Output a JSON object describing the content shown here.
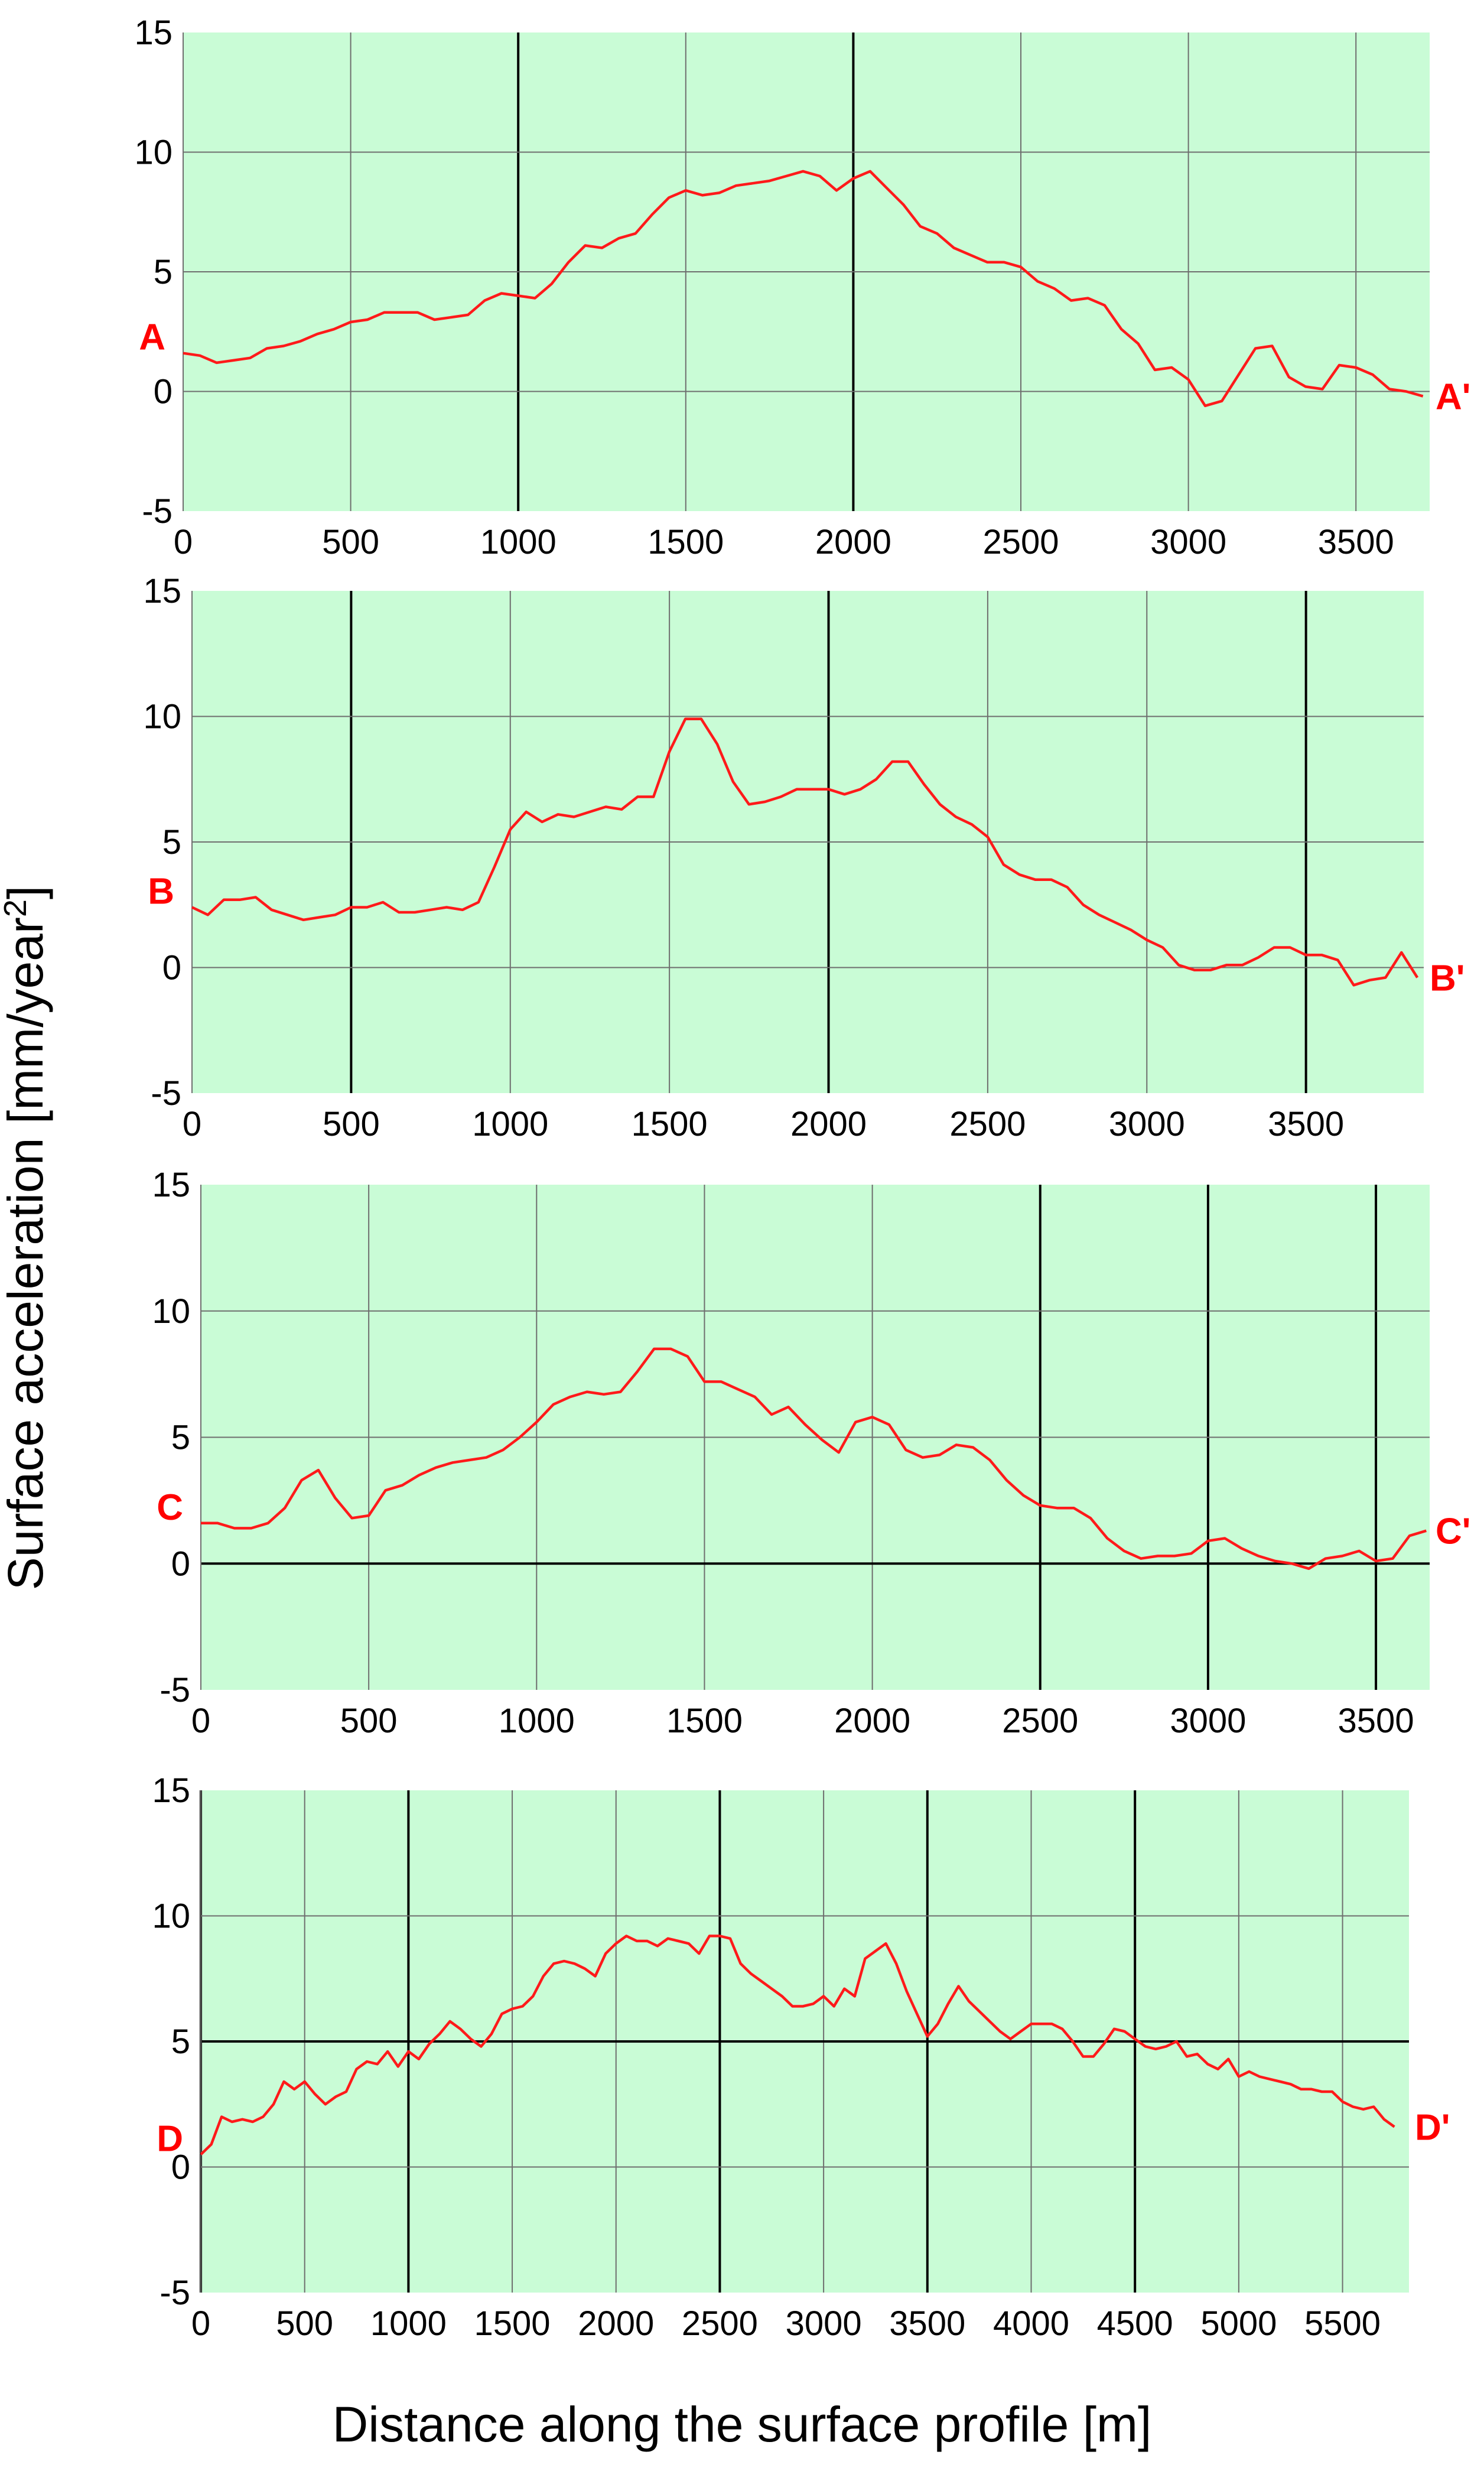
{
  "figure": {
    "ylabel_main": "Surface acceleration [mm/year",
    "ylabel_sup": "2",
    "ylabel_end": "]",
    "xlabel": "Distance along the surface profile [m]"
  },
  "colors": {
    "plot_background": "#c9fcd6",
    "line": "#ff1a1a",
    "label": "#ff0000",
    "grid_minor": "#6e6e6e",
    "grid_major": "#000000"
  },
  "chart_data": [
    {
      "type": "line",
      "profile": "A–A'",
      "start_label": "A",
      "end_label": "A'",
      "xlim": [
        0,
        3720
      ],
      "ylim": [
        -5,
        15
      ],
      "x_ticks": [
        0,
        500,
        1000,
        1500,
        2000,
        2500,
        3000,
        3500
      ],
      "y_ticks": [
        -5,
        0,
        5,
        10,
        15
      ],
      "dark_vlines": [
        1000,
        2000
      ],
      "dark_hlines": [],
      "series": [
        {
          "name": "A-A' surface acceleration",
          "x": [
            0,
            50,
            100,
            150,
            200,
            250,
            300,
            350,
            400,
            450,
            500,
            550,
            600,
            650,
            700,
            750,
            800,
            850,
            900,
            950,
            1000,
            1050,
            1100,
            1150,
            1200,
            1250,
            1300,
            1350,
            1400,
            1450,
            1500,
            1550,
            1600,
            1650,
            1700,
            1750,
            1800,
            1850,
            1900,
            1950,
            2000,
            2050,
            2100,
            2150,
            2200,
            2250,
            2300,
            2350,
            2400,
            2450,
            2500,
            2550,
            2600,
            2650,
            2700,
            2750,
            2800,
            2850,
            2900,
            2950,
            3000,
            3050,
            3100,
            3150,
            3200,
            3250,
            3300,
            3350,
            3400,
            3450,
            3500,
            3550,
            3600,
            3650,
            3700
          ],
          "y": [
            1.6,
            1.5,
            1.2,
            1.3,
            1.4,
            1.8,
            1.9,
            2.1,
            2.4,
            2.6,
            2.9,
            3.0,
            3.3,
            3.3,
            3.3,
            3.0,
            3.1,
            3.2,
            3.8,
            4.1,
            4.0,
            3.9,
            4.5,
            5.4,
            6.1,
            6.0,
            6.4,
            6.6,
            7.4,
            8.1,
            8.4,
            8.2,
            8.3,
            8.6,
            8.7,
            8.8,
            9.0,
            9.2,
            9.0,
            8.4,
            8.9,
            9.2,
            8.5,
            7.8,
            6.9,
            6.6,
            6.0,
            5.7,
            5.4,
            5.4,
            5.2,
            4.6,
            4.3,
            3.8,
            3.9,
            3.6,
            2.6,
            2.0,
            0.9,
            1.0,
            0.5,
            -0.6,
            -0.4,
            0.7,
            1.8,
            1.9,
            0.6,
            0.2,
            0.1,
            1.1,
            1.0,
            0.7,
            0.1,
            0.0,
            -0.2
          ]
        }
      ]
    },
    {
      "type": "line",
      "profile": "B–B'",
      "start_label": "B",
      "end_label": "B'",
      "xlim": [
        0,
        3870
      ],
      "ylim": [
        -5,
        15
      ],
      "x_ticks": [
        0,
        500,
        1000,
        1500,
        2000,
        2500,
        3000,
        3500
      ],
      "y_ticks": [
        -5,
        0,
        5,
        10,
        15
      ],
      "dark_vlines": [
        500,
        2000,
        3500
      ],
      "dark_hlines": [],
      "series": [
        {
          "name": "B-B' surface acceleration",
          "x": [
            0,
            50,
            100,
            150,
            200,
            250,
            300,
            350,
            400,
            450,
            500,
            550,
            600,
            650,
            700,
            750,
            800,
            850,
            900,
            950,
            1000,
            1050,
            1100,
            1150,
            1200,
            1250,
            1300,
            1350,
            1400,
            1450,
            1500,
            1550,
            1600,
            1650,
            1700,
            1750,
            1800,
            1850,
            1900,
            1950,
            2000,
            2050,
            2100,
            2150,
            2200,
            2250,
            2300,
            2350,
            2400,
            2450,
            2500,
            2550,
            2600,
            2650,
            2700,
            2750,
            2800,
            2850,
            2900,
            2950,
            3000,
            3050,
            3100,
            3150,
            3200,
            3250,
            3300,
            3350,
            3400,
            3450,
            3500,
            3550,
            3600,
            3650,
            3700,
            3750,
            3800,
            3850
          ],
          "y": [
            2.4,
            2.1,
            2.7,
            2.7,
            2.8,
            2.3,
            2.1,
            1.9,
            2.0,
            2.1,
            2.4,
            2.4,
            2.6,
            2.2,
            2.2,
            2.3,
            2.4,
            2.3,
            2.6,
            4.0,
            5.5,
            6.2,
            5.8,
            6.1,
            6.0,
            6.2,
            6.4,
            6.3,
            6.8,
            6.8,
            8.6,
            9.9,
            9.9,
            8.9,
            7.4,
            6.5,
            6.6,
            6.8,
            7.1,
            7.1,
            7.1,
            6.9,
            7.1,
            7.5,
            8.2,
            8.2,
            7.3,
            6.5,
            6.0,
            5.7,
            5.2,
            4.1,
            3.7,
            3.5,
            3.5,
            3.2,
            2.5,
            2.1,
            1.8,
            1.5,
            1.1,
            0.8,
            0.1,
            -0.1,
            -0.1,
            0.1,
            0.1,
            0.4,
            0.8,
            0.8,
            0.5,
            0.5,
            0.3,
            -0.7,
            -0.5,
            -0.4,
            0.6,
            -0.4
          ]
        }
      ]
    },
    {
      "type": "line",
      "profile": "C–C'",
      "start_label": "C",
      "end_label": "C'",
      "xlim": [
        0,
        3660
      ],
      "ylim": [
        -5,
        15
      ],
      "x_ticks": [
        0,
        500,
        1000,
        1500,
        2000,
        2500,
        3000,
        3500
      ],
      "y_ticks": [
        -5,
        0,
        5,
        10,
        15
      ],
      "dark_vlines": [
        2500,
        3000,
        3500
      ],
      "dark_hlines": [
        0
      ],
      "series": [
        {
          "name": "C-C' surface acceleration",
          "x": [
            0,
            50,
            100,
            150,
            200,
            250,
            300,
            350,
            400,
            450,
            500,
            550,
            600,
            650,
            700,
            750,
            800,
            850,
            900,
            950,
            1000,
            1050,
            1100,
            1150,
            1200,
            1250,
            1300,
            1350,
            1400,
            1450,
            1500,
            1550,
            1600,
            1650,
            1700,
            1750,
            1800,
            1850,
            1900,
            1950,
            2000,
            2050,
            2100,
            2150,
            2200,
            2250,
            2300,
            2350,
            2400,
            2450,
            2500,
            2550,
            2600,
            2650,
            2700,
            2750,
            2800,
            2850,
            2900,
            2950,
            3000,
            3050,
            3100,
            3150,
            3200,
            3250,
            3300,
            3350,
            3400,
            3450,
            3500,
            3550,
            3600,
            3650
          ],
          "y": [
            1.6,
            1.6,
            1.4,
            1.4,
            1.6,
            2.2,
            3.3,
            3.7,
            2.6,
            1.8,
            1.9,
            2.9,
            3.1,
            3.5,
            3.8,
            4.0,
            4.1,
            4.2,
            4.5,
            5.0,
            5.6,
            6.3,
            6.6,
            6.8,
            6.7,
            6.8,
            7.6,
            8.5,
            8.5,
            8.2,
            7.2,
            7.2,
            6.9,
            6.6,
            5.9,
            6.2,
            5.5,
            4.9,
            4.4,
            5.6,
            5.8,
            5.5,
            4.5,
            4.2,
            4.3,
            4.7,
            4.6,
            4.1,
            3.3,
            2.7,
            2.3,
            2.2,
            2.2,
            1.8,
            1.0,
            0.5,
            0.2,
            0.3,
            0.3,
            0.4,
            0.9,
            1.0,
            0.6,
            0.3,
            0.1,
            0.0,
            -0.2,
            0.2,
            0.3,
            0.5,
            0.1,
            0.2,
            1.1,
            1.3
          ]
        }
      ]
    },
    {
      "type": "line",
      "profile": "D–D'",
      "start_label": "D",
      "end_label": "D'",
      "xlim": [
        0,
        5820
      ],
      "ylim": [
        -5,
        15
      ],
      "x_ticks": [
        0,
        500,
        1000,
        1500,
        2000,
        2500,
        3000,
        3500,
        4000,
        4500,
        5000,
        5500
      ],
      "y_ticks": [
        -5,
        0,
        5,
        10,
        15
      ],
      "dark_vlines": [
        0,
        1000,
        2500,
        3500,
        4500
      ],
      "dark_hlines": [
        5
      ],
      "series": [
        {
          "name": "D-D' surface acceleration",
          "x": [
            0,
            50,
            100,
            150,
            200,
            250,
            300,
            350,
            400,
            450,
            500,
            550,
            600,
            650,
            700,
            750,
            800,
            850,
            900,
            950,
            1000,
            1050,
            1100,
            1150,
            1200,
            1250,
            1300,
            1350,
            1400,
            1450,
            1500,
            1550,
            1600,
            1650,
            1700,
            1750,
            1800,
            1850,
            1900,
            1950,
            2000,
            2050,
            2100,
            2150,
            2200,
            2250,
            2300,
            2350,
            2400,
            2450,
            2500,
            2550,
            2600,
            2650,
            2700,
            2750,
            2800,
            2850,
            2900,
            2950,
            3000,
            3050,
            3100,
            3150,
            3200,
            3250,
            3300,
            3350,
            3400,
            3450,
            3500,
            3550,
            3600,
            3650,
            3700,
            3750,
            3800,
            3850,
            3900,
            3950,
            4000,
            4050,
            4100,
            4150,
            4200,
            4250,
            4300,
            4350,
            4400,
            4450,
            4500,
            4550,
            4600,
            4650,
            4700,
            4750,
            4800,
            4850,
            4900,
            4950,
            5000,
            5050,
            5100,
            5150,
            5200,
            5250,
            5300,
            5350,
            5400,
            5450,
            5500,
            5550,
            5600,
            5650,
            5700,
            5750
          ],
          "y": [
            0.5,
            0.9,
            2.0,
            1.8,
            1.9,
            1.8,
            2.0,
            2.5,
            3.4,
            3.1,
            3.4,
            2.9,
            2.5,
            2.8,
            3.0,
            3.9,
            4.2,
            4.1,
            4.6,
            4.0,
            4.6,
            4.3,
            4.9,
            5.3,
            5.8,
            5.5,
            5.1,
            4.8,
            5.3,
            6.1,
            6.3,
            6.4,
            6.8,
            7.6,
            8.1,
            8.2,
            8.1,
            7.9,
            7.6,
            8.5,
            8.9,
            9.2,
            9.0,
            9.0,
            8.8,
            9.1,
            9.0,
            8.9,
            8.5,
            9.2,
            9.2,
            9.1,
            8.1,
            7.7,
            7.4,
            7.1,
            6.8,
            6.4,
            6.4,
            6.5,
            6.8,
            6.4,
            7.1,
            6.8,
            8.3,
            8.6,
            8.9,
            8.1,
            7.0,
            6.1,
            5.2,
            5.7,
            6.5,
            7.2,
            6.6,
            6.2,
            5.8,
            5.4,
            5.1,
            5.4,
            5.7,
            5.7,
            5.7,
            5.5,
            5.0,
            4.4,
            4.4,
            4.9,
            5.5,
            5.4,
            5.1,
            4.8,
            4.7,
            4.8,
            5.0,
            4.4,
            4.5,
            4.1,
            3.9,
            4.3,
            3.6,
            3.8,
            3.6,
            3.5,
            3.4,
            3.3,
            3.1,
            3.1,
            3.0,
            3.0,
            2.6,
            2.4,
            2.3,
            2.4,
            1.9,
            1.6
          ]
        }
      ]
    }
  ]
}
